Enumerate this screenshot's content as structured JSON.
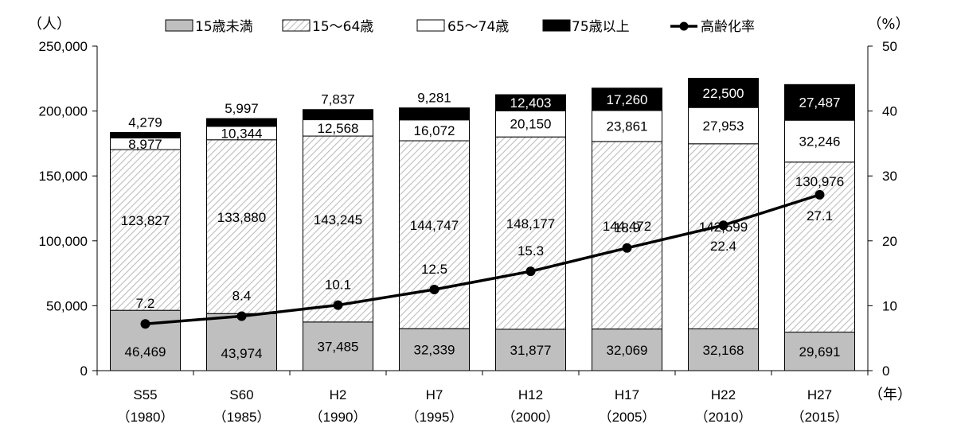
{
  "chart_data": {
    "type": "bar",
    "stacked": true,
    "categories": [
      "S55",
      "S60",
      "H2",
      "H7",
      "H12",
      "H17",
      "H22",
      "H27"
    ],
    "category_years": [
      "（1980）",
      "（1985）",
      "（1990）",
      "（1995）",
      "（2000）",
      "（2005）",
      "（2010）",
      "（2015）"
    ],
    "series": [
      {
        "name": "15歳未満",
        "style": "gray",
        "color": "#bfbfbf",
        "values": [
          46469,
          43974,
          37485,
          32339,
          31877,
          32069,
          32168,
          29691
        ],
        "labels": [
          "46,469",
          "43,974",
          "37,485",
          "32,339",
          "31,877",
          "32,069",
          "32,168",
          "29,691"
        ]
      },
      {
        "name": "15～64歳",
        "style": "hatched",
        "color": "#d0d0d0",
        "values": [
          123827,
          133880,
          143245,
          144747,
          148177,
          144472,
          142599,
          130976
        ],
        "labels": [
          "123,827",
          "133,880",
          "143,245",
          "144,747",
          "148,177",
          "144,472",
          "142,599",
          "130,976"
        ]
      },
      {
        "name": "65～74歳",
        "style": "white",
        "color": "#ffffff",
        "values": [
          8977,
          10344,
          12568,
          16072,
          20150,
          23861,
          27953,
          32246
        ],
        "labels": [
          "8,977",
          "10,344",
          "12,568",
          "16,072",
          "20,150",
          "23,861",
          "27,953",
          "32,246"
        ]
      },
      {
        "name": "75歳以上",
        "style": "black",
        "color": "#000000",
        "values": [
          4279,
          5997,
          7837,
          9281,
          12403,
          17260,
          22500,
          27487
        ],
        "labels": [
          "4,279",
          "5,997",
          "7,837",
          "9,281",
          "12,403",
          "17,260",
          "22,500",
          "27,487"
        ]
      }
    ],
    "line": {
      "name": "高齢化率",
      "axis": "right",
      "values": [
        7.2,
        8.4,
        10.1,
        12.5,
        15.3,
        18.9,
        22.4,
        27.1
      ],
      "labels": [
        "7.2",
        "8.4",
        "10.1",
        "12.5",
        "15.3",
        "18.9",
        "22.4",
        "27.1"
      ]
    },
    "left_axis": {
      "unit": "（人）",
      "ylim": [
        0,
        250000
      ],
      "ticks": [
        0,
        50000,
        100000,
        150000,
        200000,
        250000
      ],
      "tick_labels": [
        "0",
        "50,000",
        "100,000",
        "150,000",
        "200,000",
        "250,000"
      ]
    },
    "right_axis": {
      "unit": "（%）",
      "ylim": [
        0,
        50
      ],
      "ticks": [
        0,
        10,
        20,
        30,
        40,
        50
      ],
      "tick_labels": [
        "0",
        "10",
        "20",
        "30",
        "40",
        "50"
      ]
    },
    "x_unit": "（年）",
    "grid": false,
    "legend_position": "top"
  }
}
